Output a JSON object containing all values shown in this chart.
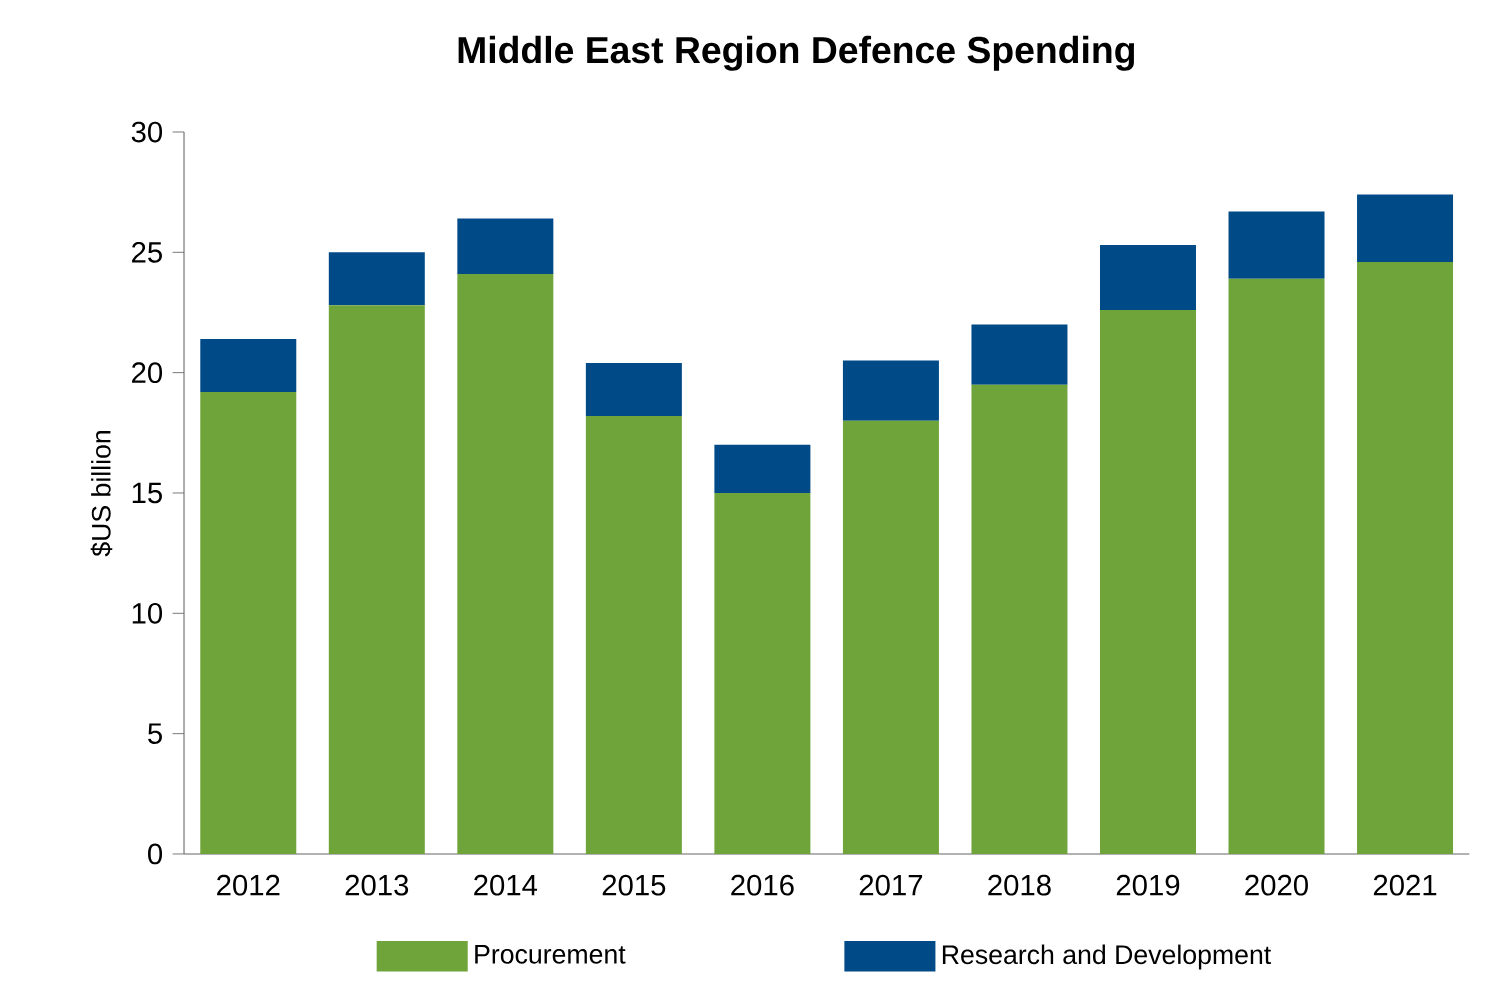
{
  "chart_data": {
    "type": "bar",
    "title": "Middle East Region Defence Spending",
    "ylabel": "$US billion",
    "categories": [
      "2012",
      "2013",
      "2014",
      "2015",
      "2016",
      "2017",
      "2018",
      "2019",
      "2020",
      "2021"
    ],
    "stacked": true,
    "series": [
      {
        "name": "Procurement",
        "color": "#6ea43a",
        "values": [
          19.2,
          22.8,
          24.1,
          18.2,
          15.0,
          18.0,
          19.5,
          22.6,
          23.9,
          24.6
        ]
      },
      {
        "name": "Research and Development",
        "color": "#004a87",
        "values": [
          2.2,
          2.2,
          2.3,
          2.2,
          2.0,
          2.5,
          2.5,
          2.7,
          2.8,
          2.8
        ]
      }
    ],
    "ylim": [
      0,
      30
    ],
    "yticks": [
      0,
      5,
      10,
      15,
      20,
      25,
      30
    ],
    "grid": false,
    "legend": "bottom"
  }
}
